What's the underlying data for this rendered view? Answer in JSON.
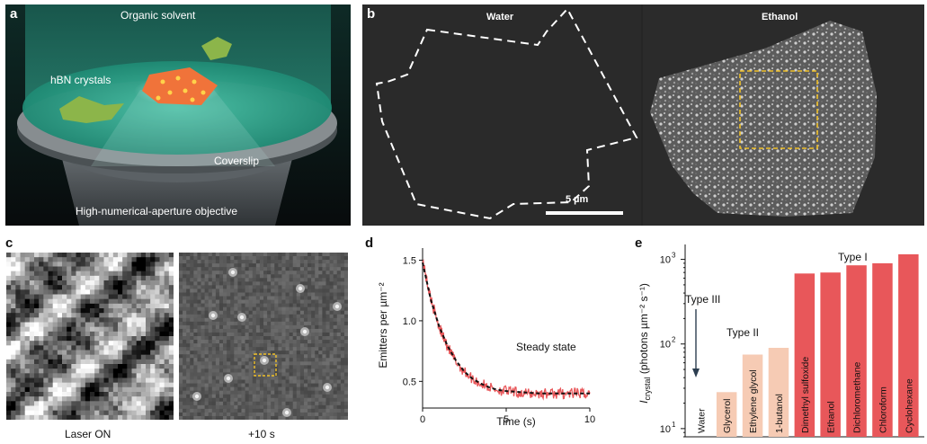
{
  "panel_a": {
    "label": "a",
    "organic_solvent": "Organic solvent",
    "hbn_crystals": "hBN crystals",
    "coverslip": "Coverslip",
    "objective": "High-numerical-aperture objective"
  },
  "panel_b": {
    "label": "b",
    "water_title": "Water",
    "ethanol_title": "Ethanol",
    "scalebar": "5 µm"
  },
  "panel_c": {
    "label": "c",
    "left_caption": "Laser ON",
    "right_caption": "+10 s"
  },
  "panel_d": {
    "label": "d",
    "annotation": "Steady state",
    "chart_data": {
      "type": "line",
      "xlabel": "Time (s)",
      "ylabel": "Emitters per µm⁻²",
      "xlim": [
        0,
        10
      ],
      "ylim": [
        0.28,
        1.6
      ],
      "xticks": [
        "0",
        "5",
        "10"
      ],
      "yticks": [
        "0.5",
        "1.0",
        "1.5"
      ],
      "series": [
        {
          "kind": "data",
          "color": "#e8575a",
          "x": [
            0,
            0.25,
            0.5,
            0.75,
            1,
            1.25,
            1.5,
            1.75,
            2,
            2.5,
            3,
            3.5,
            4,
            4.5,
            5,
            5.5,
            6,
            6.5,
            7,
            7.5,
            8,
            8.5,
            9,
            9.5,
            10
          ],
          "y": [
            1.5,
            1.33,
            1.18,
            1.06,
            0.95,
            0.86,
            0.79,
            0.72,
            0.66,
            0.58,
            0.52,
            0.48,
            0.45,
            0.43,
            0.42,
            0.41,
            0.4,
            0.4,
            0.4,
            0.4,
            0.4,
            0.4,
            0.4,
            0.4,
            0.4
          ]
        },
        {
          "kind": "fit",
          "color": "#111111",
          "x": [
            0,
            0.5,
            1,
            1.5,
            2,
            2.5,
            3,
            3.5,
            4,
            4.5,
            5,
            6,
            7,
            8,
            9,
            10
          ],
          "y": [
            1.48,
            1.17,
            0.95,
            0.79,
            0.67,
            0.58,
            0.52,
            0.48,
            0.45,
            0.43,
            0.42,
            0.41,
            0.4,
            0.4,
            0.4,
            0.4
          ]
        }
      ]
    }
  },
  "panel_e": {
    "label": "e",
    "type_labels": {
      "type3": "Type III",
      "type2": "Type II",
      "type1": "Type I"
    },
    "ylabel_main": "I",
    "ylabel_sub": "crystal",
    "ylabel_rest": " (photons µm⁻² s⁻¹)",
    "chart_data": {
      "type": "bar",
      "yscale": "log",
      "ylim": [
        8,
        1500
      ],
      "yticks": [
        {
          "base": "10",
          "exp": "1"
        },
        {
          "base": "10",
          "exp": "2"
        },
        {
          "base": "10",
          "exp": "3"
        }
      ],
      "categories": [
        "Water",
        "Glycerol",
        "Ethylene glycol",
        "1-butanol",
        "Dimethyl sulfoxide",
        "Ethanol",
        "Dichloromethane",
        "Chloroform",
        "Cyclohexane"
      ],
      "values": [
        8,
        27,
        75,
        90,
        680,
        700,
        850,
        900,
        1150
      ],
      "groups": [
        "III",
        "II",
        "II",
        "II",
        "I",
        "I",
        "I",
        "I",
        "I"
      ],
      "colors": {
        "III": "#c7c7c7",
        "II": "#f6cbb4",
        "I": "#e8575a"
      }
    }
  }
}
